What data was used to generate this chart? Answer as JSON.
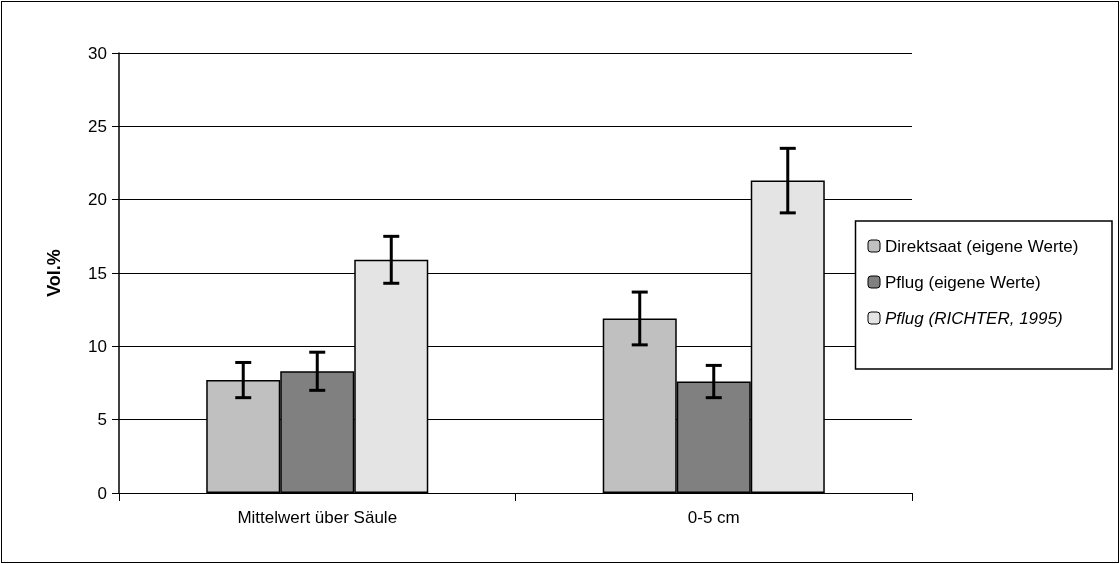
{
  "chart_data": {
    "type": "bar",
    "ylabel": "Vol.%",
    "categories": [
      "Mittelwert über Säule",
      "0-5 cm"
    ],
    "series": [
      {
        "name": "Direktsaat (eigene Werte)",
        "color": "#c0c0c0",
        "values": [
          7.7,
          11.9
        ],
        "errors": [
          1.2,
          1.8
        ]
      },
      {
        "name": "Pflug (eigene Werte)",
        "color": "#808080",
        "values": [
          8.3,
          7.6
        ],
        "errors": [
          1.3,
          1.1
        ]
      },
      {
        "name": "Pflug (RICHTER, 1995)",
        "color": "#e4e4e4",
        "values": [
          15.9,
          21.3
        ],
        "errors": [
          1.6,
          2.2
        ]
      }
    ],
    "ylim": [
      0,
      30
    ],
    "yticks": [
      0,
      5,
      10,
      15,
      20,
      25,
      30
    ],
    "grid": "y",
    "legend": "right"
  }
}
